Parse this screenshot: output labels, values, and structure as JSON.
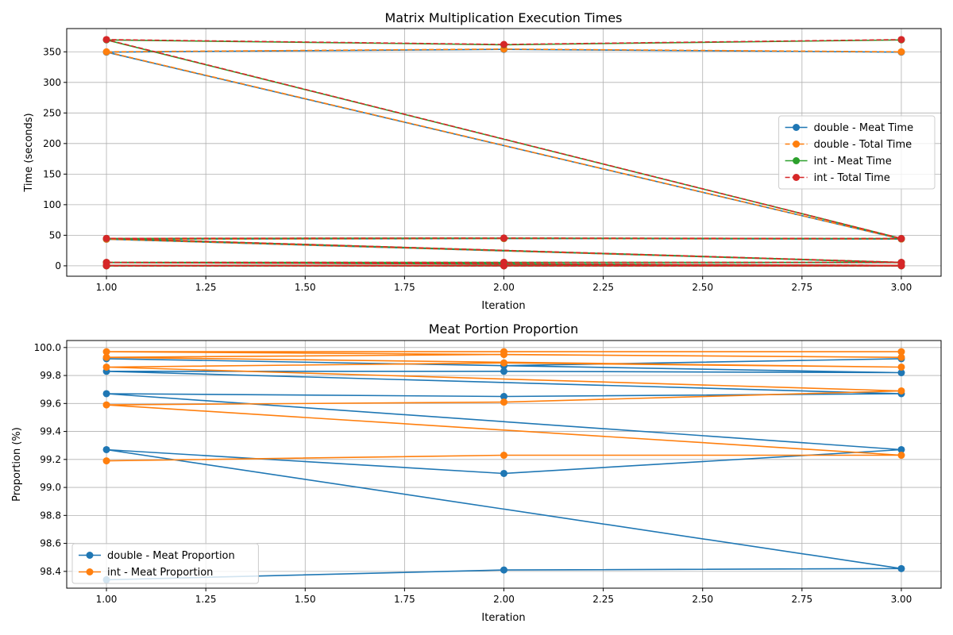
{
  "chart_data": [
    {
      "type": "line",
      "title": "Matrix Multiplication Execution Times",
      "xlabel": "Iteration",
      "ylabel": "Time (seconds)",
      "xlim": [
        0.9,
        3.1
      ],
      "ylim": [
        -17,
        388
      ],
      "xticks": [
        1.0,
        1.25,
        1.5,
        1.75,
        2.0,
        2.25,
        2.5,
        2.75,
        3.0
      ],
      "xtick_labels": [
        "1.00",
        "1.25",
        "1.50",
        "1.75",
        "2.00",
        "2.25",
        "2.50",
        "2.75",
        "3.00"
      ],
      "yticks": [
        0,
        50,
        100,
        150,
        200,
        250,
        300,
        350
      ],
      "ytick_labels": [
        "0",
        "50",
        "100",
        "150",
        "200",
        "250",
        "300",
        "350"
      ],
      "grid": true,
      "legend_position": "center-right",
      "x": [
        1,
        2,
        3,
        1,
        2,
        3,
        1,
        2,
        3,
        1,
        2,
        3,
        1,
        2,
        3
      ],
      "series": [
        {
          "name": "double - Meat Time",
          "color": "#1f77b4",
          "style": "solid",
          "values": [
            0.05,
            0.06,
            0.05,
            0.6,
            0.6,
            0.6,
            5.3,
            5.2,
            5.3,
            43.5,
            44.5,
            43.8,
            349.5,
            354,
            349.5
          ]
        },
        {
          "name": "double - Total Time",
          "color": "#ff7f0e",
          "style": "dashed",
          "values": [
            0.05,
            0.06,
            0.05,
            0.6,
            0.6,
            0.6,
            5.3,
            5.2,
            5.3,
            43.6,
            44.6,
            43.9,
            350,
            354.5,
            350
          ]
        },
        {
          "name": "int - Meat Time",
          "color": "#2ca02c",
          "style": "solid",
          "values": [
            0.05,
            0.06,
            0.05,
            0.6,
            0.6,
            0.6,
            5.6,
            5.6,
            5.6,
            44.8,
            45.3,
            44.6,
            369.5,
            361.5,
            369.5
          ]
        },
        {
          "name": "int - Total Time",
          "color": "#d62728",
          "style": "dashed",
          "values": [
            0.05,
            0.06,
            0.05,
            0.6,
            0.6,
            0.6,
            5.7,
            5.7,
            5.7,
            44.9,
            45.4,
            44.7,
            370,
            362,
            370
          ]
        }
      ]
    },
    {
      "type": "line",
      "title": "Meat Portion Proportion",
      "xlabel": "Iteration",
      "ylabel": "Proportion (%)",
      "xlim": [
        0.9,
        3.1
      ],
      "ylim": [
        98.28,
        100.05
      ],
      "xticks": [
        1.0,
        1.25,
        1.5,
        1.75,
        2.0,
        2.25,
        2.5,
        2.75,
        3.0
      ],
      "xtick_labels": [
        "1.00",
        "1.25",
        "1.50",
        "1.75",
        "2.00",
        "2.25",
        "2.50",
        "2.75",
        "3.00"
      ],
      "yticks": [
        98.4,
        98.6,
        98.8,
        99.0,
        99.2,
        99.4,
        99.6,
        99.8,
        100.0
      ],
      "ytick_labels": [
        "98.4",
        "98.6",
        "98.8",
        "99.0",
        "99.2",
        "99.4",
        "99.6",
        "99.8",
        "100.0"
      ],
      "grid": true,
      "legend_position": "lower-left",
      "x": [
        1,
        2,
        3,
        1,
        2,
        3,
        1,
        2,
        3,
        1,
        2,
        3,
        1,
        2,
        3
      ],
      "series": [
        {
          "name": "double - Meat Proportion",
          "color": "#1f77b4",
          "style": "solid",
          "values": [
            98.34,
            98.41,
            98.42,
            99.27,
            99.1,
            99.27,
            99.67,
            99.65,
            99.67,
            99.83,
            99.83,
            99.82,
            99.92,
            99.87,
            99.92
          ]
        },
        {
          "name": "int - Meat Proportion",
          "color": "#ff7f0e",
          "style": "solid",
          "values": [
            99.19,
            99.23,
            99.23,
            99.59,
            99.61,
            99.69,
            99.86,
            99.89,
            99.86,
            99.93,
            99.95,
            99.93,
            99.97,
            99.97,
            99.97
          ]
        }
      ]
    }
  ]
}
